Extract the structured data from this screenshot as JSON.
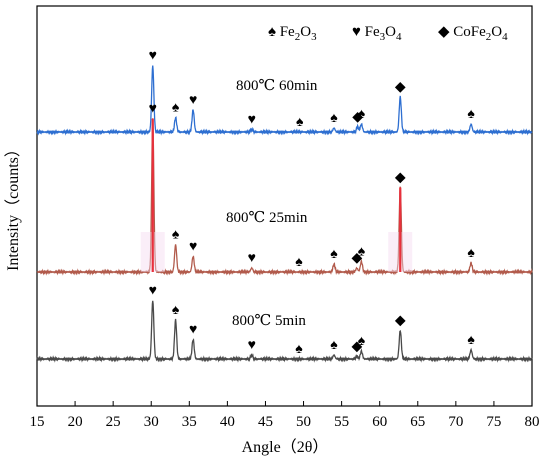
{
  "chart_data": {
    "type": "line",
    "xlabel": "Angle（2θ）",
    "ylabel": "Intensity（counts）",
    "xlim": [
      15,
      80
    ],
    "xticks": [
      15,
      20,
      25,
      30,
      35,
      40,
      45,
      50,
      55,
      60,
      65,
      70,
      75,
      80
    ],
    "yticks_shown": false,
    "legend": {
      "placement": "top-right",
      "entries": [
        {
          "symbol": "♠",
          "name": "Fe",
          "sub1": "2",
          "mid": "O",
          "sub2": "3"
        },
        {
          "symbol": "♥",
          "name": "Fe",
          "sub1": "3",
          "mid": "O",
          "sub2": "4"
        },
        {
          "symbol": "◆",
          "name": "CoFe",
          "sub1": "2",
          "mid": "O",
          "sub2": "4"
        }
      ]
    },
    "series": [
      {
        "name": "800℃ 60min",
        "color": "#2e6fd1",
        "baseline": 0.18,
        "peaks": [
          {
            "x": 30.2,
            "h": 0.51,
            "m": "♥"
          },
          {
            "x": 33.2,
            "h": 0.11,
            "m": "♠"
          },
          {
            "x": 35.5,
            "h": 0.17,
            "m": "♥"
          },
          {
            "x": 43.2,
            "h": 0.02,
            "m": "♥"
          },
          {
            "x": 49.5,
            "h": 0.0,
            "m": "♠"
          },
          {
            "x": 54.0,
            "h": 0.03,
            "m": "♠"
          },
          {
            "x": 57.1,
            "h": 0.04,
            "m": "◆"
          },
          {
            "x": 57.6,
            "h": 0.06,
            "m": "♠"
          },
          {
            "x": 62.7,
            "h": 0.27,
            "m": "◆"
          },
          {
            "x": 72.0,
            "h": 0.06,
            "m": "♠"
          }
        ]
      },
      {
        "name": "800℃ 25min",
        "color": "#b25b4c",
        "highlight_color": "#e8303c",
        "baseline": 0.18,
        "peaks": [
          {
            "x": 30.2,
            "h": 1.18,
            "m": "♥"
          },
          {
            "x": 33.2,
            "h": 0.21,
            "m": "♠"
          },
          {
            "x": 35.5,
            "h": 0.12,
            "m": "♥"
          },
          {
            "x": 43.2,
            "h": 0.03,
            "m": "♥"
          },
          {
            "x": 49.4,
            "h": 0.0,
            "m": "♠"
          },
          {
            "x": 54.0,
            "h": 0.06,
            "m": "♠"
          },
          {
            "x": 57.0,
            "h": 0.03,
            "m": "◆"
          },
          {
            "x": 57.6,
            "h": 0.08,
            "m": "♠"
          },
          {
            "x": 62.7,
            "h": 0.65,
            "m": "◆"
          },
          {
            "x": 72.0,
            "h": 0.07,
            "m": "♠"
          }
        ]
      },
      {
        "name": "800℃ 5min",
        "color": "#4a4a4a",
        "baseline": 0.18,
        "peaks": [
          {
            "x": 30.2,
            "h": 0.45,
            "m": "♥"
          },
          {
            "x": 33.2,
            "h": 0.3,
            "m": "♠"
          },
          {
            "x": 35.5,
            "h": 0.15,
            "m": "♥"
          },
          {
            "x": 43.2,
            "h": 0.03,
            "m": "♥"
          },
          {
            "x": 49.4,
            "h": 0.0,
            "m": "♠"
          },
          {
            "x": 54.0,
            "h": 0.03,
            "m": "♠"
          },
          {
            "x": 57.0,
            "h": 0.02,
            "m": "◆"
          },
          {
            "x": 57.6,
            "h": 0.06,
            "m": "♠"
          },
          {
            "x": 62.7,
            "h": 0.22,
            "m": "◆"
          },
          {
            "x": 72.0,
            "h": 0.07,
            "m": "♠"
          }
        ]
      }
    ]
  }
}
